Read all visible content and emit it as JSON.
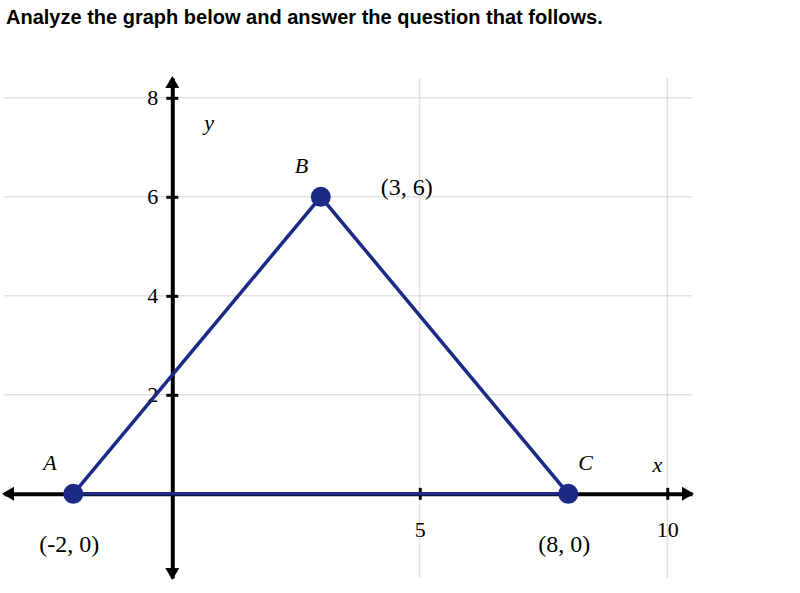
{
  "chart_data": {
    "type": "polygon",
    "title": "Analyze the graph below and answer the question that follows.",
    "xlabel": "x",
    "ylabel": "y",
    "x": [
      -2,
      3,
      8
    ],
    "values": [
      0,
      6,
      0
    ],
    "point_labels": [
      "A",
      "B",
      "C"
    ],
    "coordinate_labels": [
      "(-2, 0)",
      "(3, 6)",
      "(8, 0)"
    ],
    "color": "#1c2a86",
    "marker": "circle",
    "xlim": [
      -3.4,
      10.5
    ],
    "ylim": [
      -1.7,
      8.4
    ],
    "xticks": [
      5,
      10
    ],
    "yticks": [
      2,
      4,
      6,
      8
    ],
    "grid": true
  }
}
